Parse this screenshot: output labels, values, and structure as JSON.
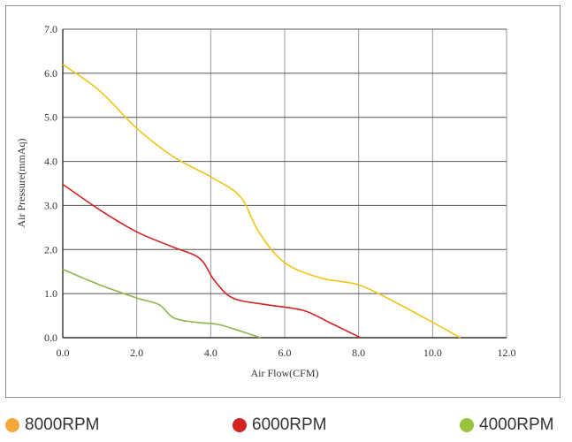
{
  "chart_data": {
    "type": "line",
    "xlabel": "Air Flow(CFM)",
    "ylabel": "Air Pressure(mmAq)",
    "xlim": [
      0,
      12
    ],
    "ylim": [
      0,
      7
    ],
    "x_ticks": [
      "0.0",
      "2.0",
      "4.0",
      "6.0",
      "8.0",
      "10.0",
      "12.0"
    ],
    "y_ticks": [
      "0.0",
      "1.0",
      "2.0",
      "3.0",
      "4.0",
      "5.0",
      "6.0",
      "7.0"
    ],
    "grid": true,
    "legend_position": "bottom",
    "series": [
      {
        "name": "8000RPM",
        "color": "#f0c419",
        "legend_color": "#f2a93b",
        "points": [
          [
            0,
            6.2
          ],
          [
            1,
            5.6
          ],
          [
            2,
            4.75
          ],
          [
            3,
            4.1
          ],
          [
            4,
            3.65
          ],
          [
            4.8,
            3.2
          ],
          [
            5.3,
            2.4
          ],
          [
            6,
            1.7
          ],
          [
            7,
            1.35
          ],
          [
            8,
            1.2
          ],
          [
            9,
            0.8
          ],
          [
            10,
            0.35
          ],
          [
            10.75,
            0
          ]
        ]
      },
      {
        "name": "6000RPM",
        "color": "#d42222",
        "legend_color": "#d42222",
        "points": [
          [
            0,
            3.48
          ],
          [
            1,
            2.9
          ],
          [
            2,
            2.4
          ],
          [
            3,
            2.05
          ],
          [
            3.7,
            1.8
          ],
          [
            4.1,
            1.3
          ],
          [
            4.6,
            0.9
          ],
          [
            5.5,
            0.75
          ],
          [
            6.5,
            0.62
          ],
          [
            7.2,
            0.35
          ],
          [
            8.05,
            0
          ]
        ]
      },
      {
        "name": "4000RPM",
        "color": "#8bb84a",
        "legend_color": "#9bc23c",
        "points": [
          [
            0,
            1.55
          ],
          [
            1,
            1.2
          ],
          [
            2,
            0.9
          ],
          [
            2.6,
            0.75
          ],
          [
            3,
            0.45
          ],
          [
            3.6,
            0.35
          ],
          [
            4.2,
            0.3
          ],
          [
            4.8,
            0.15
          ],
          [
            5.35,
            0
          ]
        ]
      }
    ]
  }
}
